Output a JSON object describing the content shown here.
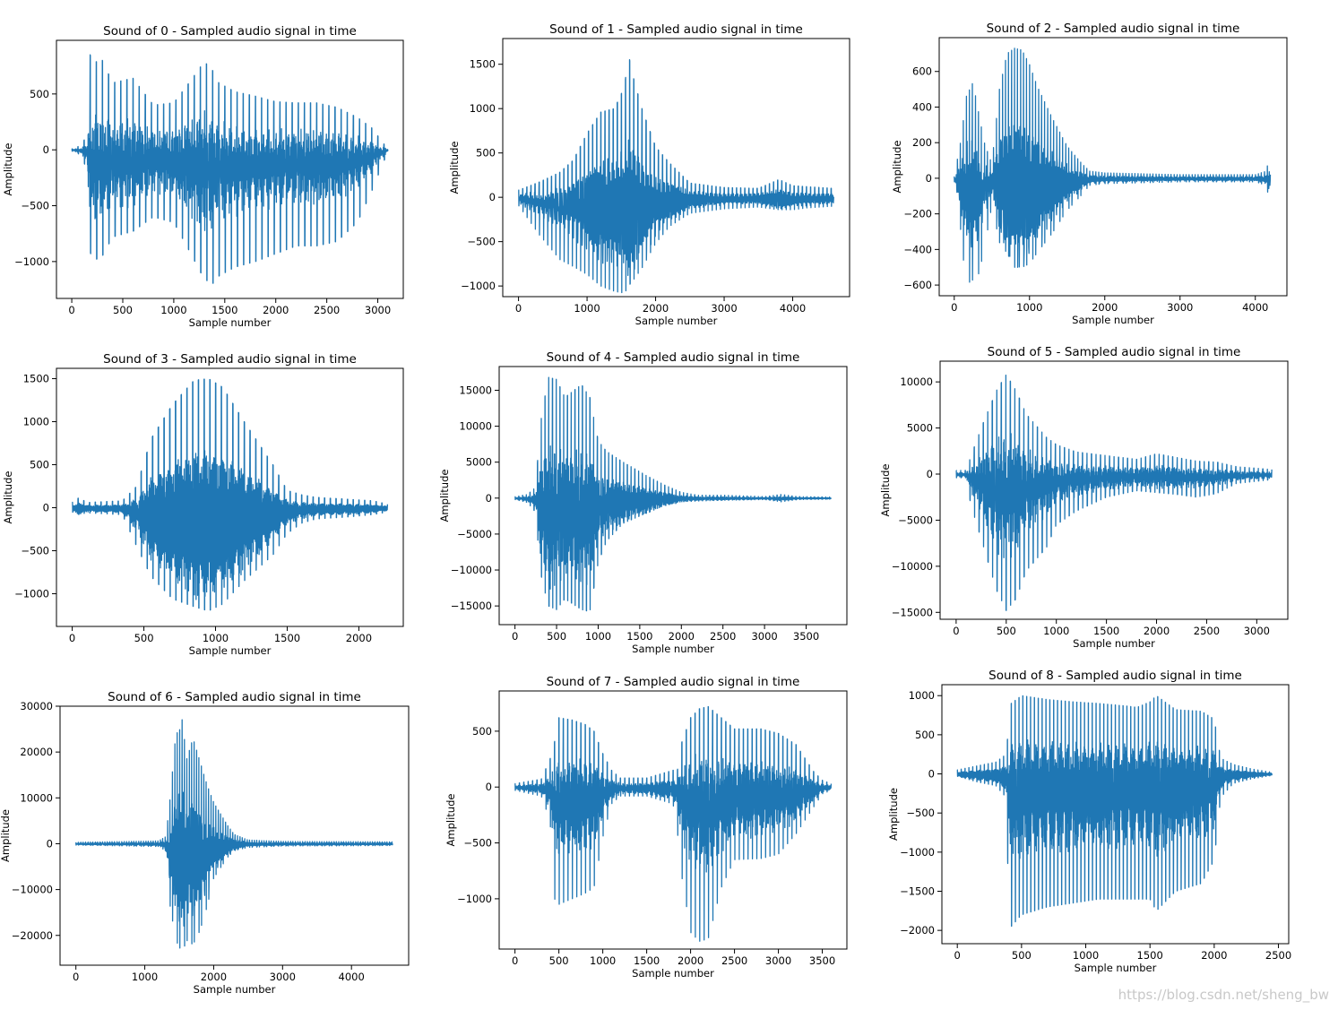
{
  "watermark": "https://blog.csdn.net/sheng_bw",
  "line_color": "#1f77b4",
  "chart_data": [
    {
      "type": "line",
      "title": "Sound of 0 - Sampled audio signal in time",
      "xlabel": "Sample number",
      "ylabel": "Amplitude",
      "n_samples": 3100,
      "xlim": [
        -150,
        3250
      ],
      "ylim": [
        -1330,
        980
      ],
      "xticks": [
        0,
        500,
        1000,
        1500,
        2000,
        2500,
        3000
      ],
      "yticks": [
        -1000,
        -500,
        0,
        500
      ],
      "envelope": {
        "x": [
          0,
          100,
          150,
          180,
          200,
          300,
          400,
          600,
          800,
          1000,
          1150,
          1300,
          1400,
          1450,
          1500,
          1600,
          1800,
          2000,
          2200,
          2400,
          2600,
          2800,
          2950,
          3050,
          3100
        ],
        "upper": [
          10,
          40,
          150,
          850,
          780,
          800,
          600,
          640,
          400,
          420,
          600,
          790,
          690,
          580,
          570,
          520,
          480,
          430,
          420,
          420,
          380,
          290,
          190,
          60,
          20
        ],
        "lower": [
          -10,
          -50,
          -200,
          -900,
          -1000,
          -950,
          -780,
          -730,
          -600,
          -650,
          -900,
          -1160,
          -1200,
          -1120,
          -1100,
          -1050,
          -1000,
          -930,
          -860,
          -860,
          -820,
          -650,
          -350,
          -120,
          -20
        ]
      },
      "period": 60
    },
    {
      "type": "line",
      "title": "Sound of 1 - Sampled audio signal in time",
      "xlabel": "Sample number",
      "ylabel": "Amplitude",
      "n_samples": 4600,
      "xlim": [
        -230,
        4830
      ],
      "ylim": [
        -1120,
        1790
      ],
      "xticks": [
        0,
        1000,
        2000,
        3000,
        4000
      ],
      "yticks": [
        -1000,
        -500,
        0,
        500,
        1000,
        1500
      ],
      "envelope": {
        "x": [
          0,
          300,
          600,
          800,
          1000,
          1200,
          1400,
          1550,
          1600,
          1650,
          1800,
          2000,
          2200,
          2500,
          3000,
          3500,
          3800,
          4000,
          4200,
          4600
        ],
        "upper": [
          80,
          170,
          280,
          420,
          720,
          960,
          1000,
          1250,
          1640,
          1420,
          1000,
          570,
          390,
          160,
          110,
          100,
          200,
          130,
          120,
          100
        ],
        "lower": [
          -90,
          -420,
          -700,
          -780,
          -870,
          -1000,
          -1060,
          -1080,
          -1000,
          -960,
          -800,
          -520,
          -330,
          -180,
          -130,
          -110,
          -140,
          -140,
          -120,
          -100
        ]
      },
      "period": 60
    },
    {
      "type": "line",
      "title": "Sound of 2 - Sampled audio signal in time",
      "xlabel": "Sample number",
      "ylabel": "Amplitude",
      "n_samples": 4200,
      "xlim": [
        -200,
        4420
      ],
      "ylim": [
        -660,
        790
      ],
      "xticks": [
        0,
        1000,
        2000,
        3000,
        4000
      ],
      "yticks": [
        -600,
        -400,
        -200,
        0,
        200,
        400,
        600
      ],
      "envelope": {
        "x": [
          0,
          100,
          150,
          250,
          300,
          400,
          500,
          600,
          700,
          800,
          900,
          1000,
          1100,
          1300,
          1500,
          1700,
          1800,
          2000,
          3000,
          4000,
          4150,
          4180,
          4200
        ],
        "upper": [
          10,
          240,
          450,
          540,
          420,
          200,
          80,
          500,
          700,
          730,
          720,
          640,
          520,
          340,
          180,
          80,
          40,
          30,
          20,
          20,
          40,
          120,
          20
        ],
        "lower": [
          -10,
          -340,
          -600,
          -570,
          -580,
          -400,
          -150,
          -360,
          -420,
          -500,
          -500,
          -480,
          -420,
          -310,
          -180,
          -90,
          -40,
          -30,
          -20,
          -20,
          -40,
          -120,
          -20
        ]
      },
      "period": 40
    },
    {
      "type": "line",
      "title": "Sound of 3 - Sampled audio signal in time",
      "xlabel": "Sample number",
      "ylabel": "Amplitude",
      "n_samples": 2200,
      "xlim": [
        -110,
        2310
      ],
      "ylim": [
        -1380,
        1620
      ],
      "xticks": [
        0,
        500,
        1000,
        1500,
        2000
      ],
      "yticks": [
        -1000,
        -500,
        0,
        500,
        1000,
        1500
      ],
      "envelope": {
        "x": [
          0,
          50,
          100,
          350,
          450,
          550,
          700,
          850,
          950,
          1050,
          1200,
          1400,
          1500,
          1600,
          1700,
          1900,
          2100,
          2200
        ],
        "upper": [
          60,
          120,
          60,
          80,
          250,
          800,
          1200,
          1480,
          1500,
          1400,
          1000,
          500,
          200,
          150,
          120,
          100,
          80,
          40
        ],
        "lower": [
          -50,
          -80,
          -60,
          -80,
          -450,
          -800,
          -1060,
          -1150,
          -1200,
          -1120,
          -850,
          -550,
          -300,
          -180,
          -130,
          -110,
          -80,
          -50
        ]
      },
      "period": 40
    },
    {
      "type": "line",
      "title": "Sound of 4 - Sampled audio signal in time",
      "xlabel": "Sample number",
      "ylabel": "Amplitude",
      "n_samples": 3800,
      "xlim": [
        -190,
        3990
      ],
      "ylim": [
        -17600,
        18300
      ],
      "xticks": [
        0,
        500,
        1000,
        1500,
        2000,
        2500,
        3000,
        3500
      ],
      "yticks": [
        -15000,
        -10000,
        -5000,
        0,
        5000,
        10000,
        15000
      ],
      "envelope": {
        "x": [
          0,
          150,
          250,
          300,
          400,
          500,
          600,
          800,
          900,
          1000,
          1100,
          1300,
          1600,
          1800,
          2000,
          2200,
          2500,
          3000,
          3200,
          3400,
          3800
        ],
        "upper": [
          200,
          500,
          1500,
          10000,
          16800,
          16500,
          14000,
          15800,
          14000,
          8000,
          6500,
          5000,
          3000,
          1800,
          800,
          400,
          400,
          200,
          500,
          200,
          150
        ],
        "lower": [
          -200,
          -600,
          -2000,
          -10000,
          -15000,
          -15500,
          -14000,
          -15500,
          -15800,
          -9000,
          -6000,
          -3500,
          -2000,
          -1000,
          -500,
          -400,
          -300,
          -200,
          -500,
          -200,
          -150
        ]
      },
      "period": 45
    },
    {
      "type": "line",
      "title": "Sound of 5 - Sampled audio signal in time",
      "xlabel": "Sample number",
      "ylabel": "Amplitude",
      "n_samples": 3150,
      "xlim": [
        -160,
        3310
      ],
      "ylim": [
        -15750,
        12250
      ],
      "xticks": [
        0,
        500,
        1000,
        1500,
        2000,
        2500,
        3000
      ],
      "yticks": [
        -15000,
        -10000,
        -5000,
        0,
        5000,
        10000
      ],
      "envelope": {
        "x": [
          0,
          100,
          150,
          250,
          400,
          500,
          600,
          700,
          900,
          1000,
          1200,
          1500,
          1800,
          2000,
          2200,
          2400,
          2600,
          2800,
          3150
        ],
        "upper": [
          400,
          400,
          2000,
          5000,
          9000,
          10800,
          9000,
          6500,
          4000,
          3200,
          2400,
          2000,
          1600,
          2200,
          1800,
          1400,
          1300,
          800,
          500
        ],
        "lower": [
          -400,
          -400,
          -3500,
          -7000,
          -12500,
          -14800,
          -13500,
          -10500,
          -8000,
          -5500,
          -4000,
          -2500,
          -1800,
          -2000,
          -2200,
          -2500,
          -2100,
          -1000,
          -600
        ]
      },
      "period": 45
    },
    {
      "type": "line",
      "title": "Sound of 6 - Sampled audio signal in time",
      "xlabel": "Sample number",
      "ylabel": "Amplitude",
      "n_samples": 4600,
      "xlim": [
        -230,
        4830
      ],
      "ylim": [
        -26500,
        30000
      ],
      "xticks": [
        0,
        1000,
        2000,
        3000,
        4000
      ],
      "yticks": [
        -20000,
        -10000,
        0,
        10000,
        20000,
        30000
      ],
      "envelope": {
        "x": [
          0,
          1200,
          1300,
          1350,
          1450,
          1500,
          1550,
          1600,
          1700,
          1800,
          1900,
          2000,
          2200,
          2300,
          2500,
          3000,
          4600
        ],
        "upper": [
          300,
          600,
          1500,
          7000,
          24000,
          24500,
          27500,
          18000,
          23000,
          18000,
          13000,
          9000,
          4000,
          2000,
          800,
          500,
          400
        ],
        "lower": [
          -300,
          -600,
          -1500,
          -12000,
          -21000,
          -22500,
          -24000,
          -21000,
          -22000,
          -19000,
          -14000,
          -7500,
          -3000,
          -1500,
          -800,
          -500,
          -400
        ]
      },
      "period": 35
    },
    {
      "type": "line",
      "title": "Sound of 7 - Sampled audio signal in time",
      "xlabel": "Sample number",
      "ylabel": "Amplitude",
      "n_samples": 3600,
      "xlim": [
        -180,
        3780
      ],
      "ylim": [
        -1450,
        860
      ],
      "xticks": [
        0,
        500,
        1000,
        1500,
        2000,
        2500,
        3000,
        3500
      ],
      "yticks": [
        -1000,
        -500,
        0,
        500
      ],
      "envelope": {
        "x": [
          0,
          300,
          400,
          450,
          500,
          650,
          800,
          900,
          1000,
          1100,
          1200,
          1500,
          1800,
          1850,
          1900,
          2000,
          2100,
          2200,
          2350,
          2500,
          2800,
          3000,
          3200,
          3400,
          3500,
          3600
        ],
        "upper": [
          30,
          70,
          250,
          400,
          620,
          600,
          560,
          500,
          300,
          150,
          80,
          80,
          150,
          150,
          400,
          620,
          700,
          720,
          620,
          520,
          520,
          480,
          380,
          140,
          60,
          30
        ],
        "lower": [
          -30,
          -80,
          -300,
          -1000,
          -1050,
          -1000,
          -950,
          -900,
          -450,
          -150,
          -80,
          -80,
          -150,
          -400,
          -800,
          -1300,
          -1380,
          -1360,
          -900,
          -650,
          -640,
          -600,
          -420,
          -180,
          -60,
          -30
        ]
      },
      "period": 50
    },
    {
      "type": "line",
      "title": "Sound of 8 - Sampled audio signal in time",
      "xlabel": "Sample number",
      "ylabel": "Amplitude",
      "n_samples": 2450,
      "xlim": [
        -120,
        2580
      ],
      "ylim": [
        -2170,
        1140
      ],
      "xticks": [
        0,
        500,
        1000,
        1500,
        2000,
        2500
      ],
      "yticks": [
        -2000,
        -1500,
        -1000,
        -500,
        0,
        500,
        1000
      ],
      "envelope": {
        "x": [
          0,
          150,
          300,
          380,
          400,
          420,
          500,
          700,
          900,
          1100,
          1300,
          1400,
          1500,
          1550,
          1700,
          1900,
          2000,
          2050,
          2150,
          2300,
          2450
        ],
        "upper": [
          50,
          100,
          150,
          250,
          600,
          900,
          1000,
          950,
          920,
          900,
          870,
          850,
          920,
          1000,
          820,
          800,
          700,
          200,
          120,
          60,
          20
        ],
        "lower": [
          -30,
          -100,
          -150,
          -300,
          -1600,
          -1950,
          -1800,
          -1700,
          -1650,
          -1600,
          -1600,
          -1600,
          -1600,
          -1750,
          -1500,
          -1400,
          -1100,
          -300,
          -120,
          -60,
          -20
        ]
      },
      "period": 30
    }
  ]
}
